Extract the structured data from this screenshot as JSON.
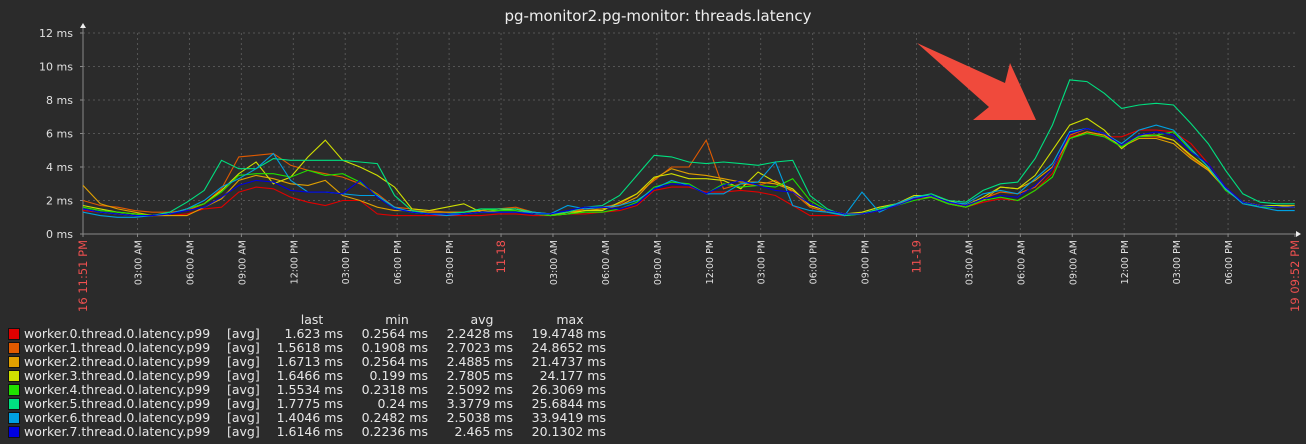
{
  "chart_data": {
    "type": "line",
    "title": "pg-monitor2.pg-monitor: threads.latency",
    "ylim": [
      0,
      12
    ],
    "y_unit": "ms",
    "yticks": [
      "0 ms",
      "2 ms",
      "4 ms",
      "6 ms",
      "8 ms",
      "10 ms",
      "12 ms"
    ],
    "xlim": [
      "11/16 23:51",
      "11/19 21:52"
    ],
    "grid": true,
    "xticks": [
      {
        "label": "11/16 11:51 PM",
        "time": "11/16 23:51",
        "highlight": true
      },
      {
        "label": "03:00 AM",
        "time": "11/17 03:00"
      },
      {
        "label": "06:00 AM",
        "time": "11/17 06:00"
      },
      {
        "label": "09:00 AM",
        "time": "11/17 09:00"
      },
      {
        "label": "12:00 PM",
        "time": "11/17 12:00"
      },
      {
        "label": "03:00 PM",
        "time": "11/17 15:00"
      },
      {
        "label": "06:00 PM",
        "time": "11/17 18:00"
      },
      {
        "label": "09:00 PM",
        "time": "11/17 21:00"
      },
      {
        "label": "11-18",
        "time": "11/18 00:00",
        "highlight": true
      },
      {
        "label": "03:00 AM",
        "time": "11/18 03:00"
      },
      {
        "label": "06:00 AM",
        "time": "11/18 06:00"
      },
      {
        "label": "09:00 AM",
        "time": "11/18 09:00"
      },
      {
        "label": "12:00 PM",
        "time": "11/18 12:00"
      },
      {
        "label": "03:00 PM",
        "time": "11/18 15:00"
      },
      {
        "label": "06:00 PM",
        "time": "11/18 18:00"
      },
      {
        "label": "09:00 PM",
        "time": "11/18 21:00"
      },
      {
        "label": "11-19",
        "time": "11/19 00:00",
        "highlight": true
      },
      {
        "label": "03:00 AM",
        "time": "11/19 03:00"
      },
      {
        "label": "06:00 AM",
        "time": "11/19 06:00"
      },
      {
        "label": "09:00 AM",
        "time": "11/19 09:00"
      },
      {
        "label": "12:00 PM",
        "time": "11/19 12:00"
      },
      {
        "label": "03:00 PM",
        "time": "11/19 15:00"
      },
      {
        "label": "06:00 PM",
        "time": "11/19 18:00"
      },
      {
        "label": "11/19 09:52 PM",
        "time": "11/19 21:52",
        "highlight": true
      }
    ],
    "x": [
      "11/16 23:51",
      "11/17 00:51",
      "11/17 01:51",
      "11/17 02:51",
      "11/17 03:51",
      "11/17 04:51",
      "11/17 05:51",
      "11/17 06:51",
      "11/17 07:51",
      "11/17 08:51",
      "11/17 09:51",
      "11/17 10:51",
      "11/17 11:51",
      "11/17 12:51",
      "11/17 13:51",
      "11/17 14:51",
      "11/17 15:51",
      "11/17 16:51",
      "11/17 17:51",
      "11/17 18:51",
      "11/17 19:51",
      "11/17 20:51",
      "11/17 21:51",
      "11/17 22:51",
      "11/17 23:51",
      "11/18 00:51",
      "11/18 01:51",
      "11/18 02:51",
      "11/18 03:51",
      "11/18 04:51",
      "11/18 05:51",
      "11/18 06:51",
      "11/18 07:51",
      "11/18 08:51",
      "11/18 09:51",
      "11/18 10:51",
      "11/18 11:51",
      "11/18 12:51",
      "11/18 13:51",
      "11/18 14:51",
      "11/18 15:51",
      "11/18 16:51",
      "11/18 17:51",
      "11/18 18:51",
      "11/18 19:51",
      "11/18 20:51",
      "11/18 21:51",
      "11/18 22:51",
      "11/18 23:51",
      "11/19 00:51",
      "11/19 01:51",
      "11/19 02:51",
      "11/19 03:51",
      "11/19 04:51",
      "11/19 05:51",
      "11/19 06:51",
      "11/19 07:51",
      "11/19 08:51",
      "11/19 09:51",
      "11/19 10:51",
      "11/19 11:51",
      "11/19 12:51",
      "11/19 13:51",
      "11/19 14:51",
      "11/19 15:51",
      "11/19 16:51",
      "11/19 17:51",
      "11/19 18:51",
      "11/19 19:51",
      "11/19 20:51",
      "11/19 21:51"
    ],
    "series": [
      {
        "name": "worker.0.thread.0.latency.p99",
        "color": "#e00000",
        "values": [
          1.4,
          1.3,
          1.2,
          1.1,
          1.1,
          1.1,
          1.2,
          1.5,
          1.6,
          2.5,
          2.8,
          2.7,
          2.2,
          1.9,
          1.7,
          2.0,
          2.0,
          1.2,
          1.1,
          1.1,
          1.1,
          1.1,
          1.1,
          1.1,
          1.2,
          1.2,
          1.1,
          1.1,
          1.2,
          1.2,
          1.3,
          1.4,
          1.7,
          2.6,
          2.8,
          2.8,
          2.5,
          2.5,
          2.6,
          2.5,
          2.3,
          1.7,
          1.1,
          1.1,
          1.1,
          1.2,
          1.5,
          1.7,
          2.1,
          2.2,
          1.9,
          1.6,
          1.9,
          2.1,
          2.0,
          2.6,
          3.6,
          5.8,
          6.1,
          5.8,
          5.8,
          6.2,
          6.2,
          6.1,
          5.4,
          4.2,
          2.8,
          1.9,
          1.7,
          1.6,
          1.6
        ]
      },
      {
        "name": "worker.1.thread.0.latency.p99",
        "color": "#e05a00",
        "values": [
          2.0,
          1.7,
          1.6,
          1.4,
          1.3,
          1.3,
          1.4,
          1.8,
          2.7,
          4.6,
          4.7,
          4.8,
          4.1,
          3.8,
          3.6,
          3.4,
          3.0,
          2.4,
          1.6,
          1.5,
          1.4,
          1.3,
          1.3,
          1.4,
          1.5,
          1.6,
          1.3,
          1.2,
          1.3,
          1.5,
          1.6,
          1.8,
          2.4,
          3.2,
          4.0,
          4.0,
          5.6,
          2.7,
          3.0,
          2.9,
          3.2,
          2.5,
          1.6,
          1.3,
          1.2,
          1.2,
          1.4,
          1.7,
          2.2,
          2.3,
          1.9,
          1.7,
          2.1,
          2.5,
          2.4,
          2.8,
          3.9,
          5.9,
          6.3,
          6.0,
          5.3,
          5.8,
          5.8,
          5.6,
          4.6,
          3.8,
          2.7,
          1.9,
          1.7,
          1.6,
          1.6
        ]
      },
      {
        "name": "worker.2.thread.0.latency.p99",
        "color": "#e0a000",
        "values": [
          2.9,
          1.8,
          1.5,
          1.3,
          1.1,
          1.1,
          1.1,
          1.6,
          2.1,
          3.2,
          3.5,
          3.3,
          3.0,
          2.9,
          3.2,
          2.3,
          2.0,
          1.6,
          1.4,
          1.4,
          1.3,
          1.3,
          1.3,
          1.4,
          1.5,
          1.5,
          1.2,
          1.1,
          1.3,
          1.4,
          1.5,
          1.7,
          2.2,
          3.3,
          3.9,
          3.6,
          3.5,
          3.3,
          3.1,
          3.1,
          3.0,
          2.6,
          1.7,
          1.4,
          1.2,
          1.2,
          1.5,
          1.7,
          2.2,
          2.2,
          1.8,
          1.6,
          2.0,
          2.8,
          2.7,
          3.2,
          4.0,
          5.7,
          6.1,
          5.9,
          5.2,
          5.7,
          5.7,
          5.4,
          4.5,
          3.8,
          2.7,
          1.9,
          1.7,
          1.7,
          1.7
        ]
      },
      {
        "name": "worker.3.thread.0.latency.p99",
        "color": "#d0e000",
        "values": [
          1.7,
          1.5,
          1.3,
          1.2,
          1.1,
          1.2,
          1.5,
          1.8,
          2.6,
          3.6,
          4.3,
          3.0,
          3.4,
          4.6,
          5.6,
          4.4,
          4.0,
          3.5,
          2.8,
          1.5,
          1.4,
          1.6,
          1.8,
          1.3,
          1.4,
          1.5,
          1.3,
          1.1,
          1.2,
          1.4,
          1.4,
          1.9,
          2.4,
          3.4,
          3.6,
          3.3,
          3.3,
          3.2,
          2.7,
          3.7,
          3.1,
          2.7,
          1.7,
          1.4,
          1.2,
          1.3,
          1.6,
          1.8,
          2.3,
          2.3,
          2.0,
          1.7,
          2.2,
          2.8,
          2.7,
          3.5,
          5.0,
          6.5,
          6.9,
          6.2,
          5.1,
          5.9,
          5.9,
          5.6,
          4.7,
          3.9,
          2.7,
          1.9,
          1.7,
          1.7,
          1.6
        ]
      },
      {
        "name": "worker.4.thread.0.latency.p99",
        "color": "#20e000",
        "values": [
          1.6,
          1.4,
          1.3,
          1.2,
          1.1,
          1.2,
          1.5,
          1.8,
          2.5,
          3.5,
          3.6,
          3.6,
          3.4,
          3.8,
          3.5,
          3.6,
          3.1,
          2.3,
          1.5,
          1.3,
          1.2,
          1.2,
          1.3,
          1.5,
          1.4,
          1.4,
          1.2,
          1.1,
          1.2,
          1.3,
          1.3,
          1.5,
          1.9,
          2.8,
          3.1,
          3.0,
          2.4,
          3.0,
          2.8,
          2.9,
          2.8,
          3.3,
          2.0,
          1.4,
          1.1,
          1.2,
          1.5,
          1.7,
          2.0,
          2.2,
          1.8,
          1.6,
          2.0,
          2.2,
          2.0,
          2.6,
          3.4,
          5.7,
          6.0,
          5.8,
          5.2,
          5.8,
          5.9,
          6.1,
          5.0,
          4.0,
          2.6,
          1.9,
          1.6,
          1.6,
          1.6
        ]
      },
      {
        "name": "worker.5.thread.0.latency.p99",
        "color": "#00e080",
        "values": [
          1.5,
          1.3,
          1.2,
          1.1,
          1.1,
          1.3,
          1.9,
          2.6,
          4.4,
          3.9,
          3.9,
          4.5,
          4.4,
          4.4,
          4.4,
          4.4,
          4.3,
          4.2,
          2.3,
          1.4,
          1.2,
          1.2,
          1.3,
          1.5,
          1.5,
          1.5,
          1.3,
          1.2,
          1.3,
          1.6,
          1.7,
          2.3,
          3.5,
          4.7,
          4.6,
          4.3,
          4.2,
          4.3,
          4.2,
          4.1,
          4.3,
          4.4,
          2.3,
          1.5,
          1.1,
          1.2,
          1.5,
          1.8,
          2.2,
          2.4,
          2.0,
          1.9,
          2.6,
          3.0,
          3.1,
          4.5,
          6.5,
          9.2,
          9.1,
          8.4,
          7.5,
          7.7,
          7.8,
          7.7,
          6.6,
          5.4,
          3.8,
          2.4,
          1.9,
          1.8,
          1.8
        ]
      },
      {
        "name": "worker.6.thread.0.latency.p99",
        "color": "#00a0e0",
        "values": [
          1.3,
          1.1,
          1.0,
          1.0,
          1.1,
          1.2,
          1.5,
          2.0,
          2.8,
          3.3,
          3.9,
          4.8,
          3.2,
          2.5,
          2.5,
          2.4,
          2.3,
          2.3,
          1.6,
          1.3,
          1.2,
          1.1,
          1.2,
          1.3,
          1.3,
          1.3,
          1.3,
          1.2,
          1.7,
          1.5,
          1.6,
          1.7,
          2.0,
          2.7,
          3.2,
          2.9,
          2.4,
          2.4,
          3.0,
          3.1,
          4.3,
          1.7,
          1.4,
          1.3,
          1.1,
          2.5,
          1.3,
          1.8,
          2.2,
          2.3,
          1.9,
          1.8,
          2.4,
          2.6,
          2.4,
          3.3,
          4.2,
          6.1,
          6.3,
          6.0,
          5.4,
          6.2,
          6.5,
          6.2,
          5.1,
          4.0,
          2.7,
          1.8,
          1.6,
          1.4,
          1.4
        ]
      },
      {
        "name": "worker.7.thread.0.latency.p99",
        "color": "#0000e0",
        "values": [
          1.5,
          1.3,
          1.2,
          1.1,
          1.1,
          1.2,
          1.4,
          1.6,
          2.2,
          2.9,
          3.2,
          3.1,
          2.6,
          2.5,
          2.5,
          2.4,
          3.2,
          2.2,
          1.5,
          1.3,
          1.2,
          1.2,
          1.2,
          1.3,
          1.3,
          1.3,
          1.2,
          1.2,
          1.4,
          1.6,
          1.6,
          1.5,
          1.8,
          2.7,
          3.0,
          2.9,
          2.4,
          2.9,
          3.2,
          2.9,
          2.6,
          2.5,
          1.8,
          1.4,
          1.2,
          1.2,
          1.4,
          1.7,
          2.1,
          2.3,
          1.9,
          1.7,
          2.1,
          2.3,
          2.2,
          2.9,
          3.9,
          6.0,
          6.3,
          6.0,
          5.3,
          5.9,
          6.1,
          5.9,
          4.9,
          4.2,
          2.8,
          1.9,
          1.7,
          1.6,
          1.6
        ]
      }
    ],
    "annotation": {
      "type": "arrow",
      "color": "#f04a3c"
    },
    "highlight_color": "#f05050"
  },
  "legend": {
    "headers": {
      "last": "last",
      "min": "min",
      "avg": "avg",
      "max": "max"
    },
    "rows": [
      {
        "name": "worker.0.thread.0.latency.p99",
        "func": "[avg]",
        "last": "1.623 ms",
        "min": "0.2564 ms",
        "avg": "2.2428 ms",
        "max": "19.4748 ms",
        "color": "#e00000"
      },
      {
        "name": "worker.1.thread.0.latency.p99",
        "func": "[avg]",
        "last": "1.5618 ms",
        "min": "0.1908 ms",
        "avg": "2.7023 ms",
        "max": "24.8652 ms",
        "color": "#e05a00"
      },
      {
        "name": "worker.2.thread.0.latency.p99",
        "func": "[avg]",
        "last": "1.6713 ms",
        "min": "0.2564 ms",
        "avg": "2.4885 ms",
        "max": "21.4737 ms",
        "color": "#e0a000"
      },
      {
        "name": "worker.3.thread.0.latency.p99",
        "func": "[avg]",
        "last": "1.6466 ms",
        "min": "0.199 ms",
        "avg": "2.7805 ms",
        "max": "24.177 ms",
        "color": "#d0e000"
      },
      {
        "name": "worker.4.thread.0.latency.p99",
        "func": "[avg]",
        "last": "1.5534 ms",
        "min": "0.2318 ms",
        "avg": "2.5092 ms",
        "max": "26.3069 ms",
        "color": "#20e000"
      },
      {
        "name": "worker.5.thread.0.latency.p99",
        "func": "[avg]",
        "last": "1.7775 ms",
        "min": "0.24 ms",
        "avg": "3.3779 ms",
        "max": "25.6844 ms",
        "color": "#00e080"
      },
      {
        "name": "worker.6.thread.0.latency.p99",
        "func": "[avg]",
        "last": "1.4046 ms",
        "min": "0.2482 ms",
        "avg": "2.5038 ms",
        "max": "33.9419 ms",
        "color": "#00a0e0"
      },
      {
        "name": "worker.7.thread.0.latency.p99",
        "func": "[avg]",
        "last": "1.6146 ms",
        "min": "0.2236 ms",
        "avg": "2.465 ms",
        "max": "20.1302 ms",
        "color": "#0000e0"
      }
    ]
  }
}
